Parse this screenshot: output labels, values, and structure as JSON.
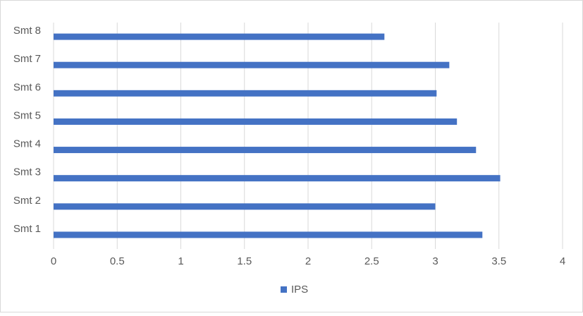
{
  "chart_data": {
    "type": "hbar",
    "categories": [
      "Smt 1",
      "Smt 2",
      "Smt 3",
      "Smt 4",
      "Smt 5",
      "Smt 6",
      "Smt 7",
      "Smt 8"
    ],
    "series": [
      {
        "name": "IPS",
        "color": "#4472c4",
        "values": [
          3.37,
          3.0,
          3.51,
          3.32,
          3.17,
          3.01,
          3.11,
          2.6
        ]
      }
    ],
    "xlim": [
      0,
      4
    ],
    "xticks": [
      0,
      0.5,
      1,
      1.5,
      2,
      2.5,
      3,
      3.5,
      4
    ],
    "grid": true,
    "legend": "bottom"
  }
}
